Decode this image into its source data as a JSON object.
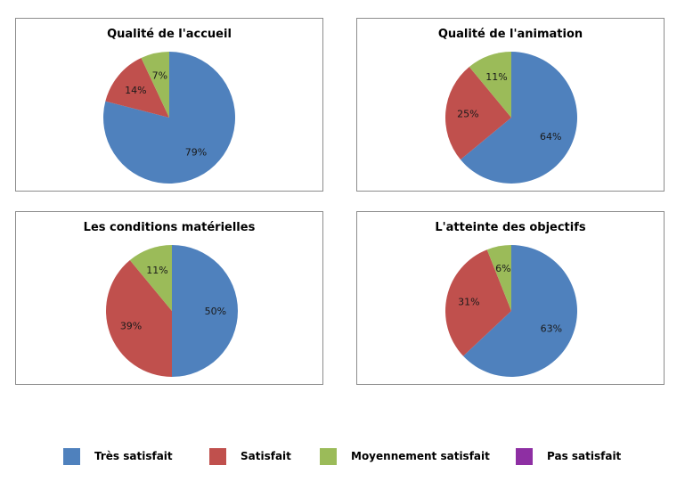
{
  "colors": {
    "tres_satisfait": "#4f81bd",
    "satisfait": "#c0504d",
    "moyennement_satisfait": "#9bbb59",
    "pas_satisfait": "#8e2fa3"
  },
  "legend": [
    {
      "label": "Très satisfait",
      "color": "#4f81bd"
    },
    {
      "label": "Satisfait",
      "color": "#c0504d"
    },
    {
      "label": "Moyennement satisfait",
      "color": "#9bbb59"
    },
    {
      "label": "Pas satisfait",
      "color": "#8e2fa3"
    }
  ],
  "chart_data": [
    {
      "type": "pie",
      "title": "Qualité de l'accueil",
      "categories": [
        "Très satisfait",
        "Satisfait",
        "Moyennement satisfait",
        "Pas satisfait"
      ],
      "values": [
        79,
        14,
        7,
        0
      ],
      "labels": [
        "79%",
        "14%",
        "7%",
        ""
      ]
    },
    {
      "type": "pie",
      "title": "Qualité de l'animation",
      "categories": [
        "Très satisfait",
        "Satisfait",
        "Moyennement satisfait",
        "Pas satisfait"
      ],
      "values": [
        64,
        25,
        11,
        0
      ],
      "labels": [
        "64%",
        "25%",
        "11%",
        ""
      ]
    },
    {
      "type": "pie",
      "title": "Les conditions matérielles",
      "categories": [
        "Très satisfait",
        "Satisfait",
        "Moyennement satisfait",
        "Pas satisfait"
      ],
      "values": [
        50,
        39,
        11,
        0
      ],
      "labels": [
        "50%",
        "39%",
        "11%",
        ""
      ]
    },
    {
      "type": "pie",
      "title": "L'atteinte des objectifs",
      "categories": [
        "Très satisfait",
        "Satisfait",
        "Moyennement satisfait",
        "Pas satisfait"
      ],
      "values": [
        63,
        31,
        6,
        0
      ],
      "labels": [
        "63%",
        "31%",
        "6%",
        ""
      ]
    }
  ]
}
